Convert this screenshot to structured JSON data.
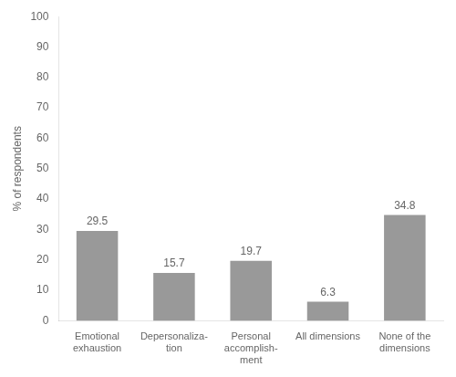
{
  "chart_data": {
    "type": "bar",
    "categories": [
      "Emotional\nexhaustion",
      "Depersonaliza-\ntion",
      "Personal\naccomplish-\nment",
      "All dimensions",
      "None of the\ndimensions"
    ],
    "values": [
      29.5,
      15.7,
      19.7,
      6.3,
      34.8
    ],
    "color": "#999999",
    "ylabel": "% of respondents",
    "ylim": [
      0,
      100
    ],
    "yticks": [
      0,
      10,
      20,
      30,
      40,
      50,
      60,
      70,
      80,
      90,
      100
    ],
    "grid": false,
    "data_labels": true
  }
}
